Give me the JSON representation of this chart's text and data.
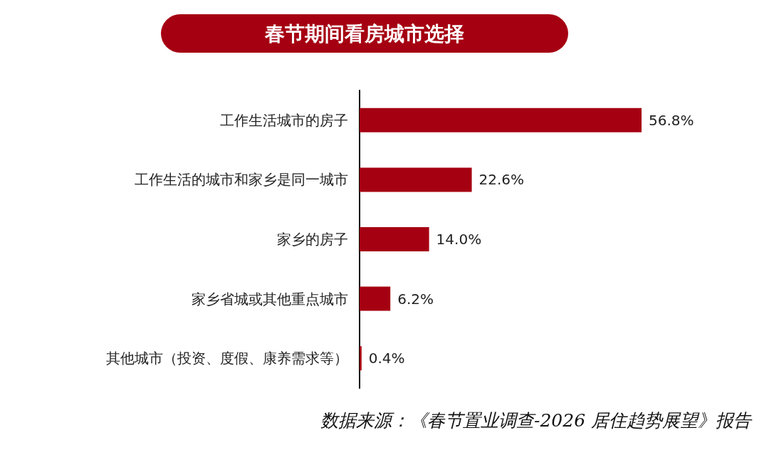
{
  "chart_data": {
    "type": "bar",
    "orientation": "horizontal",
    "title": "春节期间看房城市选择",
    "categories": [
      "工作生活城市的房子",
      "工作生活的城市和家乡是同一城市",
      "家乡的房子",
      "家乡省城或其他重点城市",
      "其他城市（投资、度假、康养需求等）"
    ],
    "values": [
      56.8,
      22.6,
      14.0,
      6.2,
      0.4
    ],
    "value_labels": [
      "56.8%",
      "22.6%",
      "14.0%",
      "6.2%",
      "0.4%"
    ],
    "color": "#a50012",
    "annotations": [
      "数据来源：《春节置业调查-2026 居住趋势展望》报告"
    ]
  }
}
